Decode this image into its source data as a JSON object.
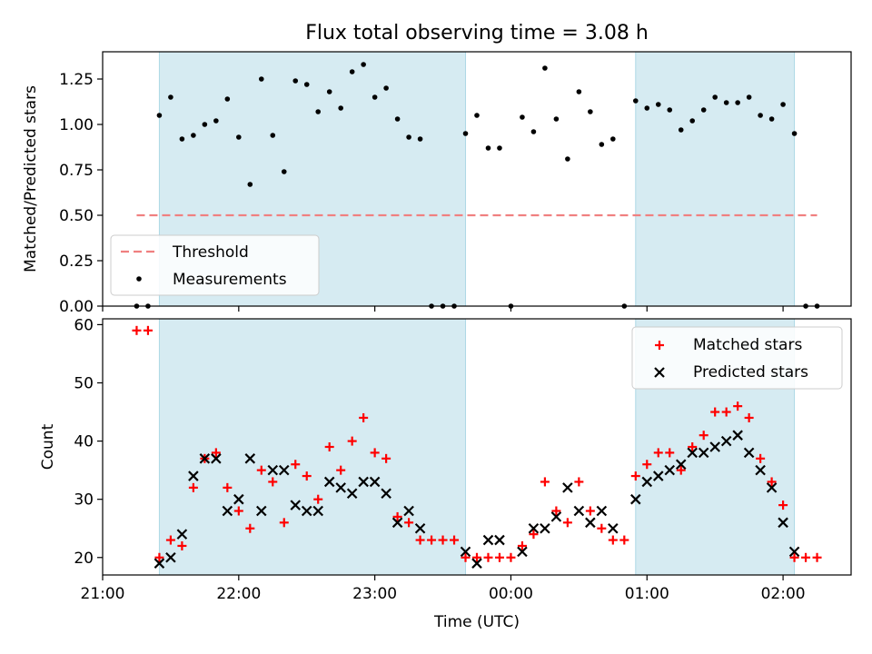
{
  "chart_data": [
    {
      "type": "scatter",
      "title": "Flux total observing time = 3.08 h",
      "ylabel": "Matched/Predicted stars",
      "ylim": [
        0,
        1.4
      ],
      "yticks": [
        "0.00",
        "0.25",
        "0.50",
        "0.75",
        "1.00",
        "1.25"
      ],
      "shaded_intervals": [
        [
          "21:25",
          "23:00+40"
        ],
        [
          "00:55",
          "02:05"
        ]
      ],
      "threshold": {
        "name": "Threshold",
        "value": 0.5,
        "x_start": "21:15",
        "x_end": "02:15",
        "color": "#f08080"
      },
      "measurements_name": "Measurements",
      "legend_placement": "lower-left",
      "points": [
        [
          "21:15",
          0
        ],
        [
          "21:20",
          0
        ],
        [
          "21:25",
          1.05
        ],
        [
          "21:30",
          1.15
        ],
        [
          "21:35",
          0.92
        ],
        [
          "21:40",
          0.94
        ],
        [
          "21:45",
          1.0
        ],
        [
          "21:50",
          1.02
        ],
        [
          "21:55",
          1.14
        ],
        [
          "22:00",
          0.93
        ],
        [
          "22:05",
          0.67
        ],
        [
          "22:10",
          1.25
        ],
        [
          "22:15",
          0.94
        ],
        [
          "22:20",
          0.74
        ],
        [
          "22:25",
          1.24
        ],
        [
          "22:30",
          1.22
        ],
        [
          "22:35",
          1.07
        ],
        [
          "22:40",
          1.18
        ],
        [
          "22:45",
          1.09
        ],
        [
          "22:50",
          1.29
        ],
        [
          "22:55",
          1.33
        ],
        [
          "23:00",
          1.15
        ],
        [
          "23:05",
          1.2
        ],
        [
          "23:10",
          1.03
        ],
        [
          "23:15",
          0.93
        ],
        [
          "23:20",
          0.92
        ],
        [
          "23:25",
          0
        ],
        [
          "23:30",
          0
        ],
        [
          "23:35",
          0
        ],
        [
          "23:40",
          0.95
        ],
        [
          "23:45",
          1.05
        ],
        [
          "23:50",
          0.87
        ],
        [
          "23:55",
          0.87
        ],
        [
          "00:00",
          0
        ],
        [
          "00:05",
          1.04
        ],
        [
          "00:10",
          0.96
        ],
        [
          "00:15",
          1.31
        ],
        [
          "00:20",
          1.03
        ],
        [
          "00:25",
          0.81
        ],
        [
          "00:30",
          1.18
        ],
        [
          "00:35",
          1.07
        ],
        [
          "00:40",
          0.89
        ],
        [
          "00:45",
          0.92
        ],
        [
          "00:50",
          0
        ],
        [
          "00:55",
          1.13
        ],
        [
          "01:00",
          1.09
        ],
        [
          "01:05",
          1.11
        ],
        [
          "01:10",
          1.08
        ],
        [
          "01:15",
          0.97
        ],
        [
          "01:20",
          1.02
        ],
        [
          "01:25",
          1.08
        ],
        [
          "01:30",
          1.15
        ],
        [
          "01:35",
          1.12
        ],
        [
          "01:40",
          1.12
        ],
        [
          "01:45",
          1.15
        ],
        [
          "01:50",
          1.05
        ],
        [
          "01:55",
          1.03
        ],
        [
          "02:00",
          1.11
        ],
        [
          "02:05",
          0.95
        ],
        [
          "02:10",
          0
        ],
        [
          "02:15",
          0
        ]
      ]
    },
    {
      "type": "scatter",
      "ylabel": "Count",
      "xlabel": "Time (UTC)",
      "ylim": [
        17,
        61
      ],
      "yticks": [
        "20",
        "30",
        "40",
        "50",
        "60"
      ],
      "xticks": [
        "21:00",
        "22:00",
        "23:00",
        "00:00",
        "01:00",
        "02:00"
      ],
      "legend_placement": "upper-right",
      "series": [
        {
          "name": "Matched stars",
          "color": "#ff0000",
          "marker": "plus",
          "points": [
            [
              "21:15",
              59
            ],
            [
              "21:20",
              59
            ],
            [
              "21:25",
              20
            ],
            [
              "21:30",
              23
            ],
            [
              "21:35",
              22
            ],
            [
              "21:40",
              32
            ],
            [
              "21:45",
              37
            ],
            [
              "21:50",
              38
            ],
            [
              "21:55",
              32
            ],
            [
              "22:00",
              28
            ],
            [
              "22:05",
              25
            ],
            [
              "22:10",
              35
            ],
            [
              "22:15",
              33
            ],
            [
              "22:20",
              26
            ],
            [
              "22:25",
              36
            ],
            [
              "22:30",
              34
            ],
            [
              "22:35",
              30
            ],
            [
              "22:40",
              39
            ],
            [
              "22:45",
              35
            ],
            [
              "22:50",
              40
            ],
            [
              "22:55",
              44
            ],
            [
              "23:00",
              38
            ],
            [
              "23:05",
              37
            ],
            [
              "23:10",
              27
            ],
            [
              "23:15",
              26
            ],
            [
              "23:20",
              23
            ],
            [
              "23:25",
              23
            ],
            [
              "23:30",
              23
            ],
            [
              "23:35",
              23
            ],
            [
              "23:40",
              20
            ],
            [
              "23:45",
              20
            ],
            [
              "23:50",
              20
            ],
            [
              "23:55",
              20
            ],
            [
              "00:00",
              20
            ],
            [
              "00:05",
              22
            ],
            [
              "00:10",
              24
            ],
            [
              "00:15",
              33
            ],
            [
              "00:20",
              28
            ],
            [
              "00:25",
              26
            ],
            [
              "00:30",
              33
            ],
            [
              "00:35",
              28
            ],
            [
              "00:40",
              25
            ],
            [
              "00:45",
              23
            ],
            [
              "00:50",
              23
            ],
            [
              "00:55",
              34
            ],
            [
              "01:00",
              36
            ],
            [
              "01:05",
              38
            ],
            [
              "01:10",
              38
            ],
            [
              "01:15",
              35
            ],
            [
              "01:20",
              39
            ],
            [
              "01:25",
              41
            ],
            [
              "01:30",
              45
            ],
            [
              "01:35",
              45
            ],
            [
              "01:40",
              46
            ],
            [
              "01:45",
              44
            ],
            [
              "01:50",
              37
            ],
            [
              "01:55",
              33
            ],
            [
              "02:00",
              29
            ],
            [
              "02:05",
              20
            ],
            [
              "02:10",
              20
            ],
            [
              "02:15",
              20
            ]
          ]
        },
        {
          "name": "Predicted stars",
          "color": "#000000",
          "marker": "x",
          "points": [
            [
              "21:25",
              19
            ],
            [
              "21:30",
              20
            ],
            [
              "21:35",
              24
            ],
            [
              "21:40",
              34
            ],
            [
              "21:45",
              37
            ],
            [
              "21:50",
              37
            ],
            [
              "21:55",
              28
            ],
            [
              "22:00",
              30
            ],
            [
              "22:05",
              37
            ],
            [
              "22:10",
              28
            ],
            [
              "22:15",
              35
            ],
            [
              "22:20",
              35
            ],
            [
              "22:25",
              29
            ],
            [
              "22:30",
              28
            ],
            [
              "22:35",
              28
            ],
            [
              "22:40",
              33
            ],
            [
              "22:45",
              32
            ],
            [
              "22:50",
              31
            ],
            [
              "22:55",
              33
            ],
            [
              "23:00",
              33
            ],
            [
              "23:05",
              31
            ],
            [
              "23:10",
              26
            ],
            [
              "23:15",
              28
            ],
            [
              "23:20",
              25
            ],
            [
              "23:40",
              21
            ],
            [
              "23:45",
              19
            ],
            [
              "23:50",
              23
            ],
            [
              "23:55",
              23
            ],
            [
              "00:05",
              21
            ],
            [
              "00:10",
              25
            ],
            [
              "00:15",
              25
            ],
            [
              "00:20",
              27
            ],
            [
              "00:25",
              32
            ],
            [
              "00:30",
              28
            ],
            [
              "00:35",
              26
            ],
            [
              "00:40",
              28
            ],
            [
              "00:45",
              25
            ],
            [
              "00:55",
              30
            ],
            [
              "01:00",
              33
            ],
            [
              "01:05",
              34
            ],
            [
              "01:10",
              35
            ],
            [
              "01:15",
              36
            ],
            [
              "01:20",
              38
            ],
            [
              "01:25",
              38
            ],
            [
              "01:30",
              39
            ],
            [
              "01:35",
              40
            ],
            [
              "01:40",
              41
            ],
            [
              "01:45",
              38
            ],
            [
              "01:50",
              35
            ],
            [
              "01:55",
              32
            ],
            [
              "02:00",
              26
            ],
            [
              "02:05",
              21
            ]
          ]
        }
      ]
    }
  ]
}
